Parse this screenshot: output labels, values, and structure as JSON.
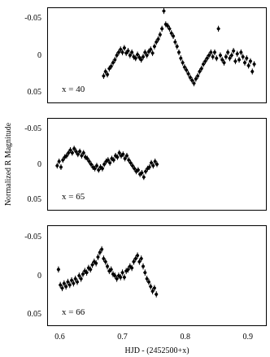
{
  "chart_data": [
    {
      "type": "scatter",
      "annotation": "x = 40",
      "tick_labels": "y",
      "grid": false,
      "color": "#000000",
      "marker": "circle",
      "xlim": [
        0.58,
        0.93
      ],
      "xticks": [
        0.6,
        0.7,
        0.8,
        0.9
      ],
      "ylim": [
        0.065,
        -0.065
      ],
      "yticks": [
        -0.05,
        0,
        0.05
      ],
      "y_error": 0.004,
      "x": [
        0.67,
        0.673,
        0.676,
        0.679,
        0.682,
        0.685,
        0.688,
        0.691,
        0.694,
        0.697,
        0.7,
        0.703,
        0.706,
        0.709,
        0.712,
        0.715,
        0.718,
        0.721,
        0.724,
        0.727,
        0.73,
        0.733,
        0.736,
        0.739,
        0.742,
        0.745,
        0.748,
        0.751,
        0.754,
        0.757,
        0.76,
        0.763,
        0.766,
        0.769,
        0.772,
        0.775,
        0.778,
        0.781,
        0.784,
        0.787,
        0.79,
        0.793,
        0.796,
        0.799,
        0.802,
        0.805,
        0.808,
        0.811,
        0.814,
        0.817,
        0.82,
        0.823,
        0.826,
        0.829,
        0.832,
        0.835,
        0.838,
        0.841,
        0.844,
        0.847,
        0.85,
        0.853,
        0.856,
        0.859,
        0.862,
        0.865,
        0.868,
        0.871,
        0.874,
        0.877,
        0.88,
        0.883,
        0.886,
        0.889,
        0.892,
        0.895,
        0.898,
        0.901,
        0.904,
        0.907,
        0.91
      ],
      "values": [
        0.028,
        0.022,
        0.026,
        0.018,
        0.015,
        0.01,
        0.006,
        0.0,
        -0.004,
        -0.008,
        -0.004,
        -0.01,
        -0.003,
        -0.006,
        0.0,
        -0.004,
        0.002,
        0.004,
        -0.001,
        0.003,
        0.006,
        0.002,
        -0.004,
        0.0,
        -0.005,
        -0.008,
        -0.003,
        -0.012,
        -0.018,
        -0.022,
        -0.028,
        -0.036,
        -0.06,
        -0.042,
        -0.04,
        -0.036,
        -0.03,
        -0.026,
        -0.018,
        -0.012,
        -0.004,
        0.004,
        0.01,
        0.016,
        0.02,
        0.025,
        0.03,
        0.034,
        0.038,
        0.032,
        0.028,
        0.022,
        0.018,
        0.012,
        0.008,
        0.004,
        0.0,
        -0.004,
        0.002,
        -0.004,
        0.004,
        -0.036,
        0.0,
        0.006,
        0.01,
        0.002,
        -0.004,
        0.004,
        0.0,
        -0.006,
        0.008,
        -0.002,
        0.006,
        -0.004,
        0.002,
        0.01,
        0.004,
        0.014,
        0.008,
        0.022,
        0.012
      ]
    },
    {
      "type": "scatter",
      "annotation": "x = 65",
      "tick_labels": "y",
      "grid": false,
      "color": "#000000",
      "marker": "circle",
      "ylabel": "Normalized R Magnitude",
      "xlim": [
        0.58,
        0.93
      ],
      "xticks": [
        0.6,
        0.7,
        0.8,
        0.9
      ],
      "ylim": [
        0.065,
        -0.065
      ],
      "yticks": [
        -0.05,
        0,
        0.05
      ],
      "y_error": 0.004,
      "x": [
        0.596,
        0.599,
        0.602,
        0.605,
        0.608,
        0.611,
        0.614,
        0.617,
        0.62,
        0.623,
        0.626,
        0.629,
        0.632,
        0.635,
        0.638,
        0.641,
        0.644,
        0.647,
        0.65,
        0.653,
        0.656,
        0.659,
        0.662,
        0.665,
        0.668,
        0.671,
        0.674,
        0.677,
        0.68,
        0.683,
        0.686,
        0.689,
        0.692,
        0.695,
        0.698,
        0.701,
        0.704,
        0.707,
        0.71,
        0.713,
        0.716,
        0.719,
        0.722,
        0.725,
        0.728,
        0.731,
        0.734,
        0.737,
        0.74,
        0.743,
        0.746,
        0.749,
        0.752,
        0.755
      ],
      "values": [
        0.002,
        -0.004,
        0.004,
        -0.006,
        -0.01,
        -0.012,
        -0.016,
        -0.02,
        -0.016,
        -0.022,
        -0.018,
        -0.014,
        -0.018,
        -0.012,
        -0.016,
        -0.01,
        -0.008,
        -0.004,
        0.0,
        0.004,
        0.006,
        0.002,
        0.008,
        0.004,
        0.006,
        0.0,
        -0.004,
        -0.006,
        -0.002,
        -0.008,
        -0.006,
        -0.012,
        -0.01,
        -0.016,
        -0.012,
        -0.014,
        -0.008,
        -0.012,
        -0.006,
        -0.002,
        0.002,
        0.006,
        0.01,
        0.008,
        0.014,
        0.012,
        0.018,
        0.01,
        0.006,
        0.004,
        -0.002,
        0.002,
        -0.004,
        0.0
      ]
    },
    {
      "type": "scatter",
      "annotation": "x = 66",
      "grid": false,
      "color": "#000000",
      "marker": "circle",
      "xlabel": "HJD - (2452500+x)",
      "xlim": [
        0.58,
        0.93
      ],
      "xticks": [
        0.6,
        0.7,
        0.8,
        0.9
      ],
      "ylim": [
        0.065,
        -0.065
      ],
      "yticks": [
        -0.05,
        0,
        0.05
      ],
      "y_error": 0.004,
      "x": [
        0.598,
        0.601,
        0.604,
        0.607,
        0.61,
        0.613,
        0.616,
        0.619,
        0.622,
        0.625,
        0.628,
        0.631,
        0.634,
        0.637,
        0.64,
        0.643,
        0.646,
        0.649,
        0.652,
        0.655,
        0.658,
        0.661,
        0.664,
        0.667,
        0.67,
        0.673,
        0.676,
        0.679,
        0.682,
        0.685,
        0.688,
        0.691,
        0.694,
        0.697,
        0.7,
        0.703,
        0.706,
        0.709,
        0.712,
        0.715,
        0.718,
        0.721,
        0.724,
        0.727,
        0.73,
        0.733,
        0.736,
        0.739,
        0.742,
        0.745,
        0.748,
        0.751,
        0.754
      ],
      "values": [
        -0.008,
        0.012,
        0.016,
        0.01,
        0.014,
        0.008,
        0.012,
        0.006,
        0.01,
        0.004,
        0.008,
        0.0,
        0.004,
        -0.002,
        -0.006,
        -0.004,
        -0.01,
        -0.008,
        -0.014,
        -0.018,
        -0.016,
        -0.024,
        -0.03,
        -0.034,
        -0.022,
        -0.018,
        -0.012,
        -0.006,
        -0.008,
        -0.002,
        0.0,
        0.004,
        0.0,
        0.002,
        -0.004,
        0.002,
        -0.006,
        -0.008,
        -0.012,
        -0.01,
        -0.018,
        -0.022,
        -0.026,
        -0.018,
        -0.022,
        -0.012,
        -0.004,
        0.004,
        0.008,
        0.014,
        0.02,
        0.016,
        0.024
      ]
    }
  ]
}
